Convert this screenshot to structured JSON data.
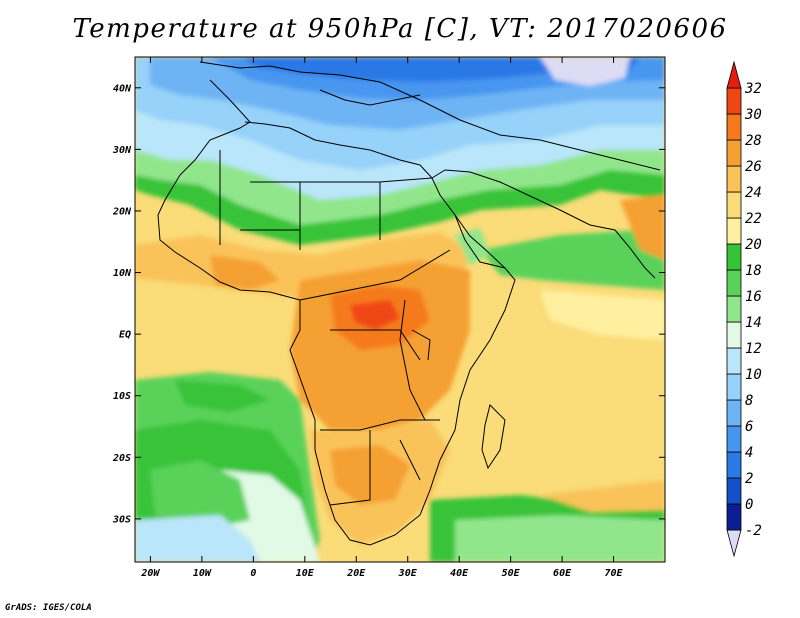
{
  "title": "Temperature at 950hPa [C], VT: 2017020606",
  "credit": "GrADS: IGES/COLA",
  "map": {
    "lon_range": [
      -23,
      80
    ],
    "lat_range": [
      -37,
      45
    ],
    "lon_ticks": [
      "20W",
      "10W",
      "0",
      "10E",
      "20E",
      "30E",
      "40E",
      "50E",
      "60E",
      "70E"
    ],
    "lat_ticks": [
      "40N",
      "30N",
      "20N",
      "10N",
      "EQ",
      "10S",
      "20S",
      "30S"
    ]
  },
  "colorbar": {
    "levels": [
      "-2",
      "0",
      "2",
      "4",
      "6",
      "8",
      "10",
      "12",
      "14",
      "16",
      "18",
      "20",
      "22",
      "24",
      "26",
      "28",
      "30",
      "32"
    ],
    "colors": [
      "#dcdcf5",
      "#0b1e96",
      "#1450c8",
      "#2b78e6",
      "#4696f0",
      "#6eb4f5",
      "#96d2fa",
      "#b9e6fa",
      "#e1fae6",
      "#91e68c",
      "#5ad25a",
      "#37c337",
      "#fff0a0",
      "#fadc78",
      "#fac35a",
      "#f5a032",
      "#f57a1e",
      "#f04614",
      "#e61e0f"
    ]
  }
}
